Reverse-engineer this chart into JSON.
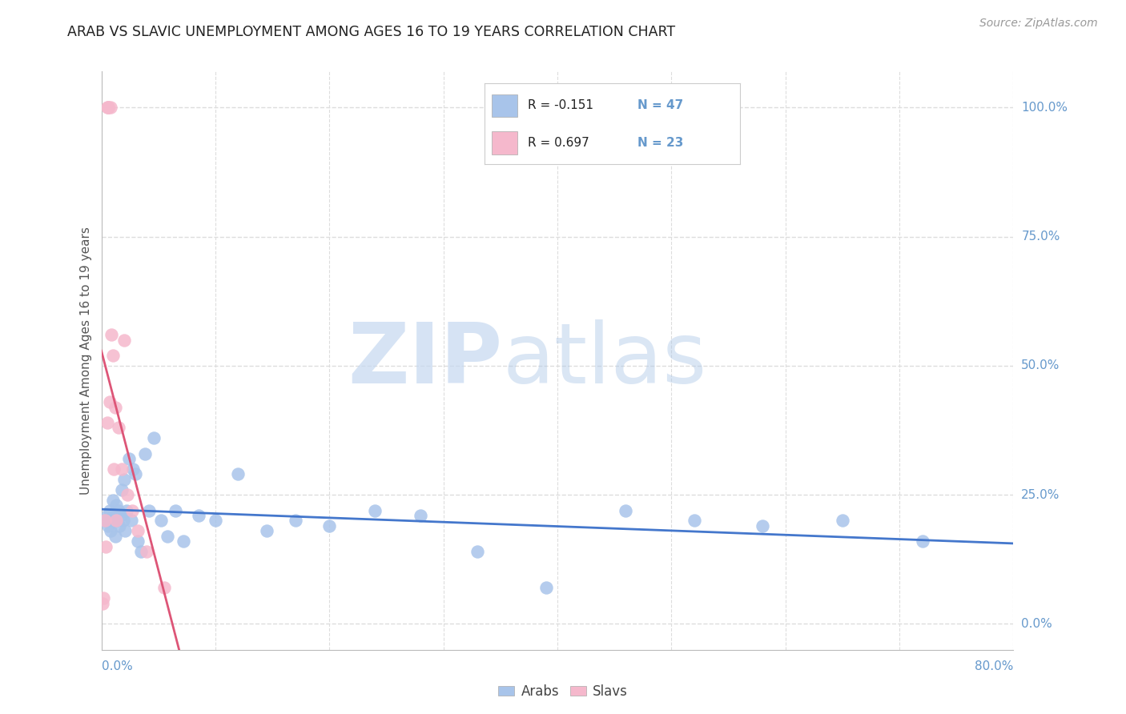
{
  "title": "ARAB VS SLAVIC UNEMPLOYMENT AMONG AGES 16 TO 19 YEARS CORRELATION CHART",
  "source": "Source: ZipAtlas.com",
  "ylabel": "Unemployment Among Ages 16 to 19 years",
  "xlim": [
    0.0,
    0.8
  ],
  "ylim": [
    -0.05,
    1.07
  ],
  "yticks": [
    0.0,
    0.25,
    0.5,
    0.75,
    1.0
  ],
  "ytick_labels": [
    "0.0%",
    "25.0%",
    "50.0%",
    "75.0%",
    "100.0%"
  ],
  "legend_r1": "R = -0.151",
  "legend_n1": "N = 47",
  "legend_r2": "R = 0.697",
  "legend_n2": "N = 23",
  "arab_color": "#a8c4ea",
  "slav_color": "#f5b8cc",
  "arab_line_color": "#4477cc",
  "slav_line_color": "#dd5577",
  "right_label_color": "#6699cc",
  "background_color": "#ffffff",
  "grid_color": "#dddddd",
  "arab_x": [
    0.003,
    0.005,
    0.006,
    0.007,
    0.008,
    0.009,
    0.01,
    0.011,
    0.012,
    0.013,
    0.014,
    0.015,
    0.016,
    0.017,
    0.018,
    0.019,
    0.02,
    0.021,
    0.022,
    0.024,
    0.026,
    0.028,
    0.03,
    0.032,
    0.035,
    0.038,
    0.042,
    0.046,
    0.052,
    0.058,
    0.065,
    0.072,
    0.085,
    0.1,
    0.12,
    0.145,
    0.17,
    0.2,
    0.24,
    0.28,
    0.33,
    0.39,
    0.46,
    0.52,
    0.58,
    0.65,
    0.72
  ],
  "arab_y": [
    0.2,
    0.21,
    0.19,
    0.22,
    0.18,
    0.2,
    0.24,
    0.21,
    0.17,
    0.23,
    0.2,
    0.22,
    0.19,
    0.21,
    0.26,
    0.2,
    0.28,
    0.18,
    0.22,
    0.32,
    0.2,
    0.3,
    0.29,
    0.16,
    0.14,
    0.33,
    0.22,
    0.36,
    0.2,
    0.17,
    0.22,
    0.16,
    0.21,
    0.2,
    0.29,
    0.18,
    0.2,
    0.19,
    0.22,
    0.21,
    0.14,
    0.07,
    0.22,
    0.2,
    0.19,
    0.2,
    0.16
  ],
  "slav_x": [
    0.001,
    0.002,
    0.003,
    0.004,
    0.005,
    0.005,
    0.006,
    0.006,
    0.007,
    0.008,
    0.009,
    0.01,
    0.011,
    0.012,
    0.013,
    0.015,
    0.018,
    0.02,
    0.023,
    0.027,
    0.032,
    0.04,
    0.055
  ],
  "slav_y": [
    0.04,
    0.05,
    0.2,
    0.15,
    0.39,
    1.0,
    1.0,
    1.0,
    0.43,
    1.0,
    0.56,
    0.52,
    0.3,
    0.42,
    0.2,
    0.38,
    0.3,
    0.55,
    0.25,
    0.22,
    0.18,
    0.14,
    0.07
  ]
}
